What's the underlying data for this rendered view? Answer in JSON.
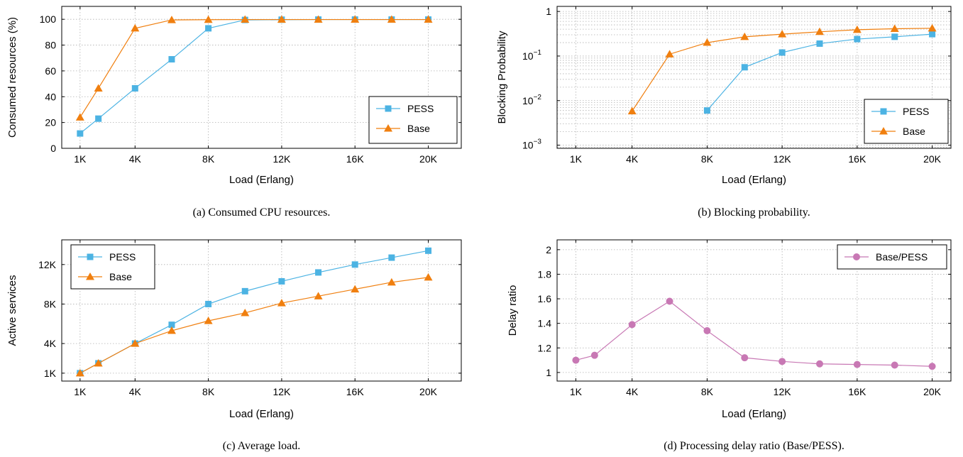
{
  "colors": {
    "pess": "#4cb3e3",
    "base": "#f07f0f",
    "ratio": "#c878b4",
    "grid": "#b0b0b0"
  },
  "chart_data": [
    {
      "type": "line",
      "caption": "(a) Consumed CPU resources.",
      "xlabel": "Load (Erlang)",
      "ylabel": "Consumed resources (%)",
      "xticks": [
        {
          "v": 1000,
          "label": "1K"
        },
        {
          "v": 4000,
          "label": "4K"
        },
        {
          "v": 8000,
          "label": "8K"
        },
        {
          "v": 12000,
          "label": "12K"
        },
        {
          "v": 16000,
          "label": "16K"
        },
        {
          "v": 20000,
          "label": "20K"
        }
      ],
      "yticks": [
        {
          "v": 0,
          "label": "0"
        },
        {
          "v": 20,
          "label": "20"
        },
        {
          "v": 40,
          "label": "40"
        },
        {
          "v": 60,
          "label": "60"
        },
        {
          "v": 80,
          "label": "80"
        },
        {
          "v": 100,
          "label": "100"
        }
      ],
      "xlim": [
        0,
        21800
      ],
      "ylim": [
        0,
        110
      ],
      "yscale": "linear",
      "grid": true,
      "legend": "bottom-right",
      "x": [
        1000,
        2000,
        4000,
        6000,
        8000,
        10000,
        12000,
        14000,
        16000,
        18000,
        20000
      ],
      "series": [
        {
          "name": "PESS",
          "marker": "square",
          "values": [
            11.5,
            23,
            46.5,
            69,
            93,
            99.5,
            99.7,
            99.8,
            99.8,
            99.8,
            99.8
          ]
        },
        {
          "name": "Base",
          "marker": "triangle",
          "values": [
            24,
            46.5,
            93,
            99.5,
            99.7,
            99.8,
            99.8,
            99.8,
            99.8,
            99.8,
            99.8
          ]
        }
      ]
    },
    {
      "type": "line",
      "caption": "(b) Blocking probability.",
      "xlabel": "Load (Erlang)",
      "ylabel": "Blocking Probability",
      "xticks": [
        {
          "v": 1000,
          "label": "1K"
        },
        {
          "v": 4000,
          "label": "4K"
        },
        {
          "v": 8000,
          "label": "8K"
        },
        {
          "v": 12000,
          "label": "12K"
        },
        {
          "v": 16000,
          "label": "16K"
        },
        {
          "v": 20000,
          "label": "20K"
        }
      ],
      "yticks": [
        {
          "v": 0.001,
          "label": "10",
          "sup": "−3"
        },
        {
          "v": 0.01,
          "label": "10",
          "sup": "−2"
        },
        {
          "v": 0.1,
          "label": "10",
          "sup": "−1"
        },
        {
          "v": 1,
          "label": "1"
        }
      ],
      "xlim": [
        0,
        21000
      ],
      "ylim": [
        0.00085,
        1.3
      ],
      "yscale": "log",
      "grid": true,
      "legend": "bottom-right",
      "x": [
        1000,
        2000,
        4000,
        6000,
        8000,
        10000,
        12000,
        14000,
        16000,
        18000,
        20000
      ],
      "series": [
        {
          "name": "PESS",
          "marker": "square",
          "values": [
            null,
            null,
            null,
            null,
            0.006,
            0.056,
            0.12,
            0.19,
            0.24,
            0.27,
            0.31
          ]
        },
        {
          "name": "Base",
          "marker": "triangle",
          "values": [
            null,
            null,
            0.0058,
            0.11,
            0.2,
            0.27,
            0.31,
            0.35,
            0.39,
            0.41,
            0.42
          ]
        }
      ]
    },
    {
      "type": "line",
      "caption": "(c) Average load.",
      "xlabel": "Load (Erlang)",
      "ylabel": "Active services",
      "xticks": [
        {
          "v": 1000,
          "label": "1K"
        },
        {
          "v": 4000,
          "label": "4K"
        },
        {
          "v": 8000,
          "label": "8K"
        },
        {
          "v": 12000,
          "label": "12K"
        },
        {
          "v": 16000,
          "label": "16K"
        },
        {
          "v": 20000,
          "label": "20K"
        }
      ],
      "yticks": [
        {
          "v": 1000,
          "label": "1K"
        },
        {
          "v": 4000,
          "label": "4K"
        },
        {
          "v": 8000,
          "label": "8K"
        },
        {
          "v": 12000,
          "label": "12K"
        }
      ],
      "xlim": [
        0,
        21800
      ],
      "ylim": [
        200,
        14500
      ],
      "yscale": "linear",
      "grid": true,
      "legend": "top-left",
      "x": [
        1000,
        2000,
        4000,
        6000,
        8000,
        10000,
        12000,
        14000,
        16000,
        18000,
        20000
      ],
      "series": [
        {
          "name": "PESS",
          "marker": "square",
          "values": [
            1000,
            2000,
            4000,
            5900,
            8000,
            9300,
            10300,
            11200,
            12000,
            12700,
            13400
          ]
        },
        {
          "name": "Base",
          "marker": "triangle",
          "values": [
            1000,
            2000,
            4000,
            5300,
            6300,
            7100,
            8100,
            8800,
            9500,
            10200,
            10700
          ]
        }
      ]
    },
    {
      "type": "line",
      "caption": "(d) Processing delay ratio (Base/PESS).",
      "xlabel": "Load (Erlang)",
      "ylabel": "Delay ratio",
      "xticks": [
        {
          "v": 1000,
          "label": "1K"
        },
        {
          "v": 4000,
          "label": "4K"
        },
        {
          "v": 8000,
          "label": "8K"
        },
        {
          "v": 12000,
          "label": "12K"
        },
        {
          "v": 16000,
          "label": "16K"
        },
        {
          "v": 20000,
          "label": "20K"
        }
      ],
      "yticks": [
        {
          "v": 1,
          "label": "1"
        },
        {
          "v": 1.2,
          "label": "1.2"
        },
        {
          "v": 1.4,
          "label": "1.4"
        },
        {
          "v": 1.6,
          "label": "1.6"
        },
        {
          "v": 1.8,
          "label": "1.8"
        },
        {
          "v": 2,
          "label": "2"
        }
      ],
      "xlim": [
        0,
        21000
      ],
      "ylim": [
        0.93,
        2.08
      ],
      "yscale": "linear",
      "grid": true,
      "legend": "top-right",
      "x": [
        1000,
        2000,
        4000,
        6000,
        8000,
        10000,
        12000,
        14000,
        16000,
        18000,
        20000
      ],
      "series": [
        {
          "name": "Base/PESS",
          "marker": "circle",
          "values": [
            1.1,
            1.14,
            1.39,
            1.58,
            1.34,
            1.12,
            1.09,
            1.07,
            1.065,
            1.06,
            1.05
          ]
        }
      ]
    }
  ]
}
